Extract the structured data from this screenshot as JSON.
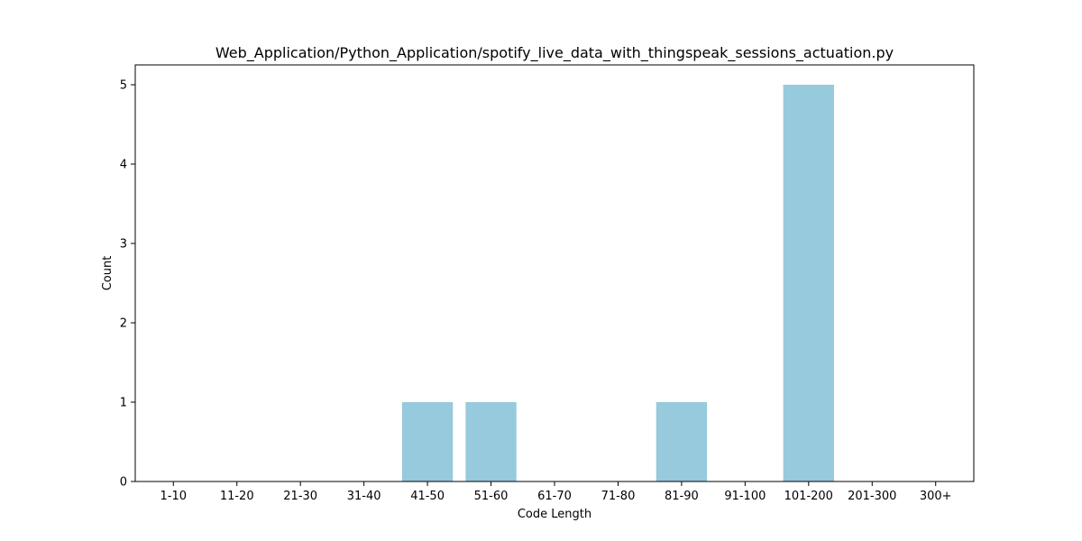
{
  "chart_data": {
    "type": "bar",
    "title": "Web_Application/Python_Application/spotify_live_data_with_thingspeak_sessions_actuation.py",
    "xlabel": "Code Length",
    "ylabel": "Count",
    "categories": [
      "1-10",
      "11-20",
      "21-30",
      "31-40",
      "41-50",
      "51-60",
      "61-70",
      "71-80",
      "81-90",
      "91-100",
      "101-200",
      "201-300",
      "300+"
    ],
    "values": [
      0,
      0,
      0,
      0,
      1,
      1,
      0,
      0,
      1,
      0,
      5,
      0,
      0
    ],
    "ylim": [
      0,
      5.25
    ],
    "yticks": [
      0,
      1,
      2,
      3,
      4,
      5
    ],
    "grid": false,
    "bar_color": "#96cadc"
  }
}
